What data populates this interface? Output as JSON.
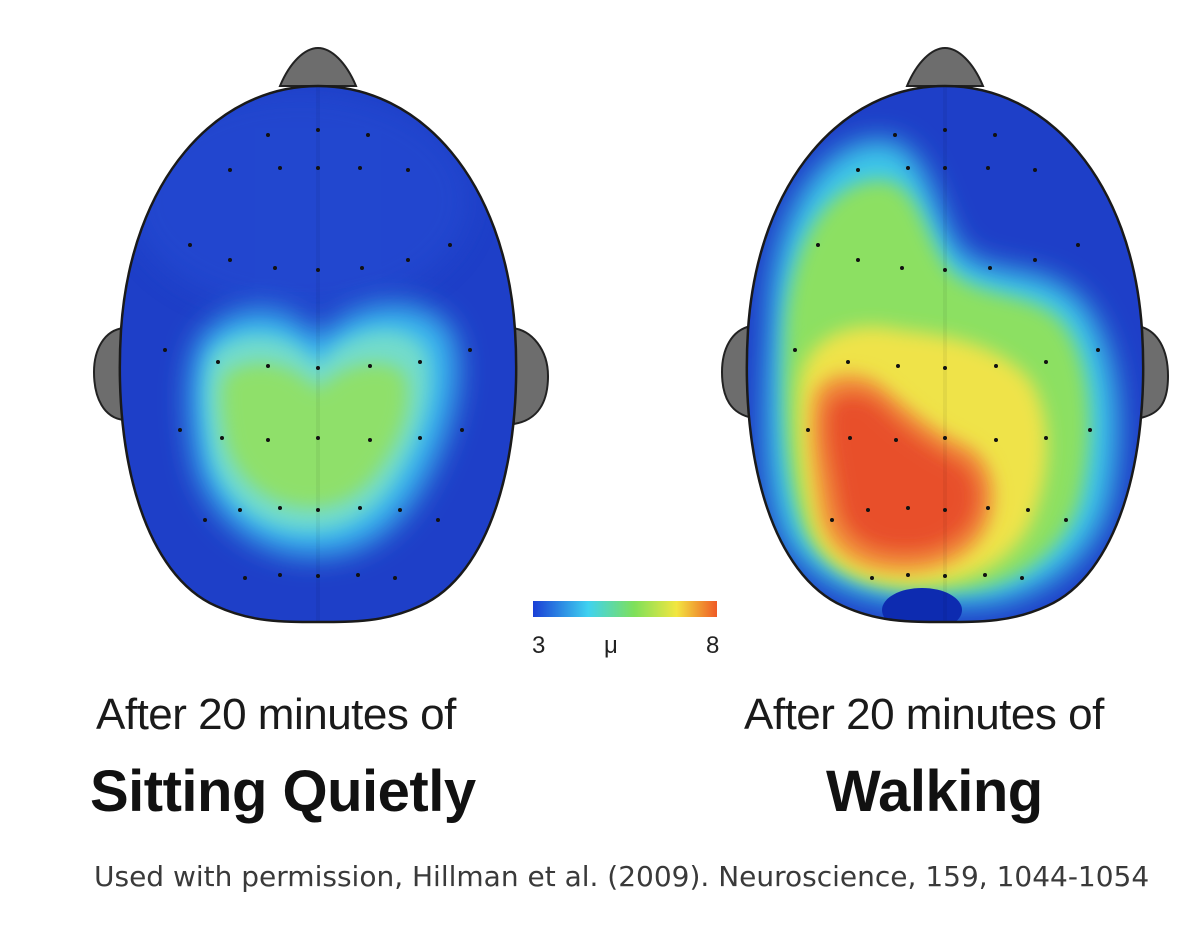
{
  "panels": [
    {
      "id": "sitting",
      "caption_line1": "After 20 minutes of",
      "caption_line2": "Sitting Quietly"
    },
    {
      "id": "walking",
      "caption_line1": "After 20 minutes of",
      "caption_line2": "Walking"
    }
  ],
  "color_scale": {
    "min_label": "3",
    "unit_label": "μ",
    "max_label": "8",
    "colors": [
      "#1a3fd6",
      "#3fd2f0",
      "#7ee05a",
      "#f2e640",
      "#ef5a26"
    ]
  },
  "citation": "Used with permission, Hillman et al. (2009). Neuroscience, 159, 1044-1054"
}
